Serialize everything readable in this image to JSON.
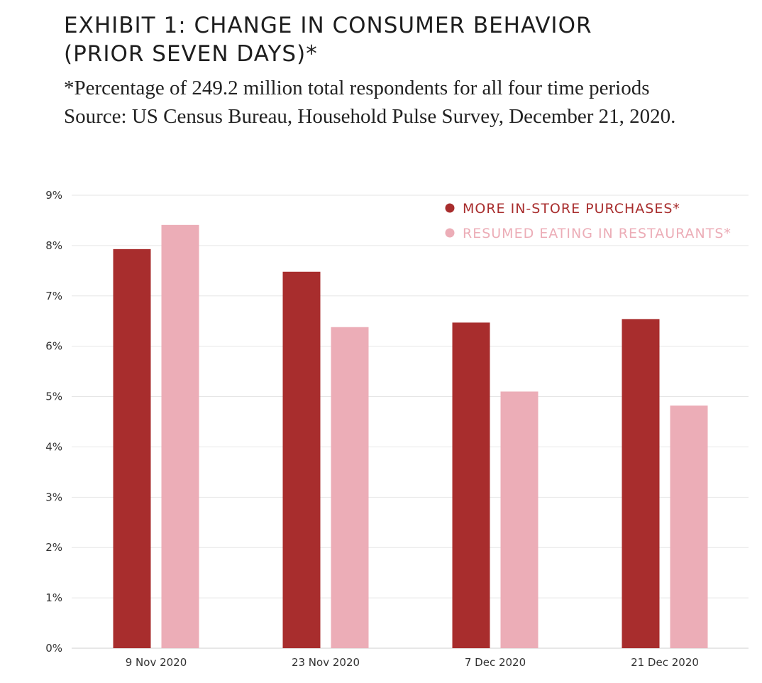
{
  "header": {
    "title_line1": "EXHIBIT 1: CHANGE IN CONSUMER BEHAVIOR",
    "title_line2": "(PRIOR SEVEN DAYS)*",
    "subtitle_line1": "*Percentage of 249.2 million total respondents for all four time periods",
    "subtitle_line2": "Source: US Census Bureau, Household Pulse Survey, December 21, 2020."
  },
  "colors": {
    "series1": "#a82d2d",
    "series2": "#ecadb7",
    "grid": "#e6e6e6",
    "axis": "#cfcfcf"
  },
  "chart_data": {
    "type": "bar",
    "categories": [
      "9 Nov 2020",
      "23 Nov 2020",
      "7 Dec 2020",
      "21 Dec 2020"
    ],
    "series": [
      {
        "name": "MORE IN-STORE PURCHASES*",
        "values": [
          7.93,
          7.48,
          6.47,
          6.54
        ]
      },
      {
        "name": "RESUMED EATING IN RESTAURANTS*",
        "values": [
          8.41,
          6.38,
          5.1,
          4.82
        ]
      }
    ],
    "yticks": [
      "0%",
      "1%",
      "2%",
      "3%",
      "4%",
      "5%",
      "6%",
      "7%",
      "8%",
      "9%"
    ],
    "ylim": [
      0,
      9
    ],
    "ylabel": "",
    "xlabel": "",
    "grid": true,
    "legend_position": "top-right"
  }
}
